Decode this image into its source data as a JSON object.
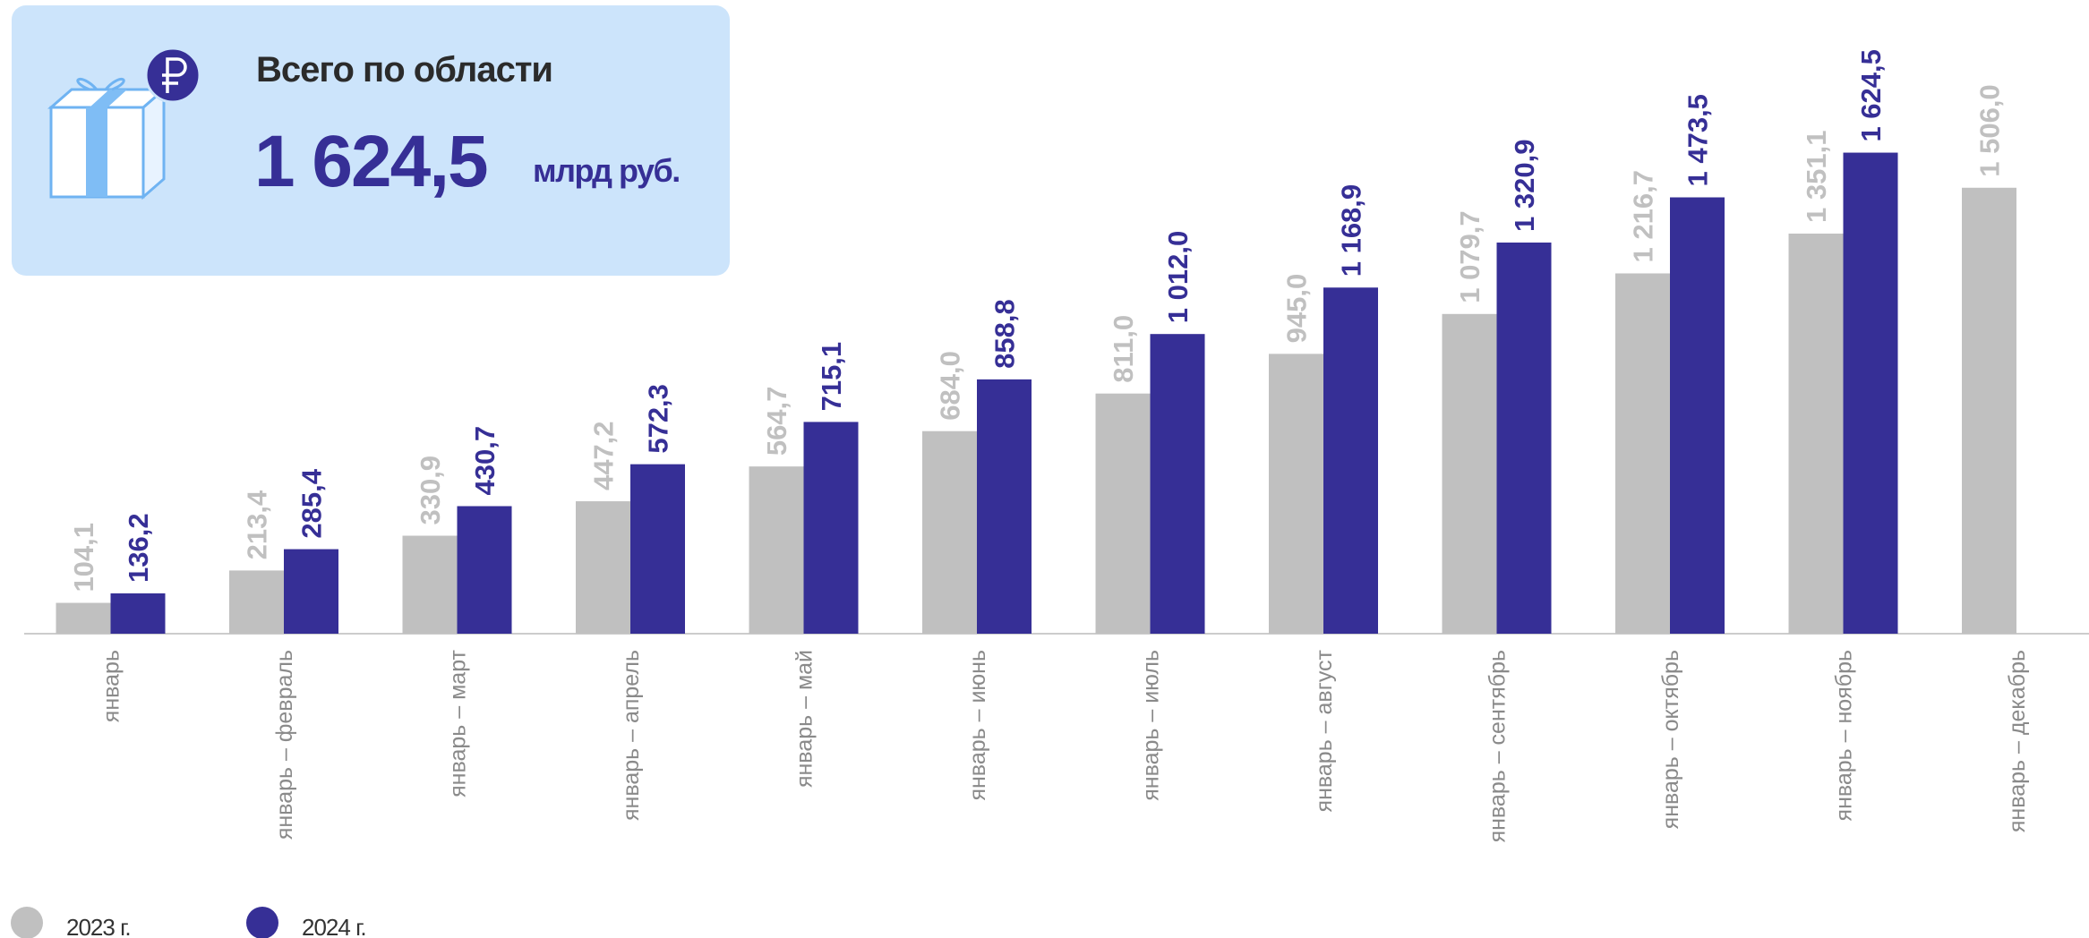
{
  "card": {
    "title": "Всего по области",
    "value": "1 624,5",
    "unit": "млрд руб."
  },
  "chart_data": {
    "type": "bar",
    "categories": [
      "январь",
      "январь – февраль",
      "январь – март",
      "январь – апрель",
      "январь – май",
      "январь – июнь",
      "январь – июль",
      "январь – август",
      "январь – сентябрь",
      "январь – октябрь",
      "январь – ноябрь",
      "январь – декабрь"
    ],
    "series": [
      {
        "name": "2023 г.",
        "color": "#c0c0c0",
        "label_color": "#c0c0c0",
        "values": [
          104.1,
          213.4,
          330.9,
          447.2,
          564.7,
          684.0,
          811.0,
          945.0,
          1079.7,
          1216.7,
          1351.1,
          1506.0
        ],
        "value_labels": [
          "104,1",
          "213,4",
          "330,9",
          "447,2",
          "564,7",
          "684,0",
          "811,0",
          "945,0",
          "1 079,7",
          "1 216,7",
          "1 351,1",
          "1 506,0"
        ]
      },
      {
        "name": "2024 г.",
        "color": "#362f96",
        "label_color": "#362f96",
        "values": [
          136.2,
          285.4,
          430.7,
          572.3,
          715.1,
          858.8,
          1012.0,
          1168.9,
          1320.9,
          1473.5,
          1624.5,
          null
        ],
        "value_labels": [
          "136,2",
          "285,4",
          "430,7",
          "572,3",
          "715,1",
          "858,8",
          "1 012,0",
          "1 168,9",
          "1 320,9",
          "1 473,5",
          "1 624,5",
          null
        ]
      }
    ],
    "ylim": [
      0,
      2140
    ],
    "grid": false,
    "legend": "bottom-left"
  }
}
